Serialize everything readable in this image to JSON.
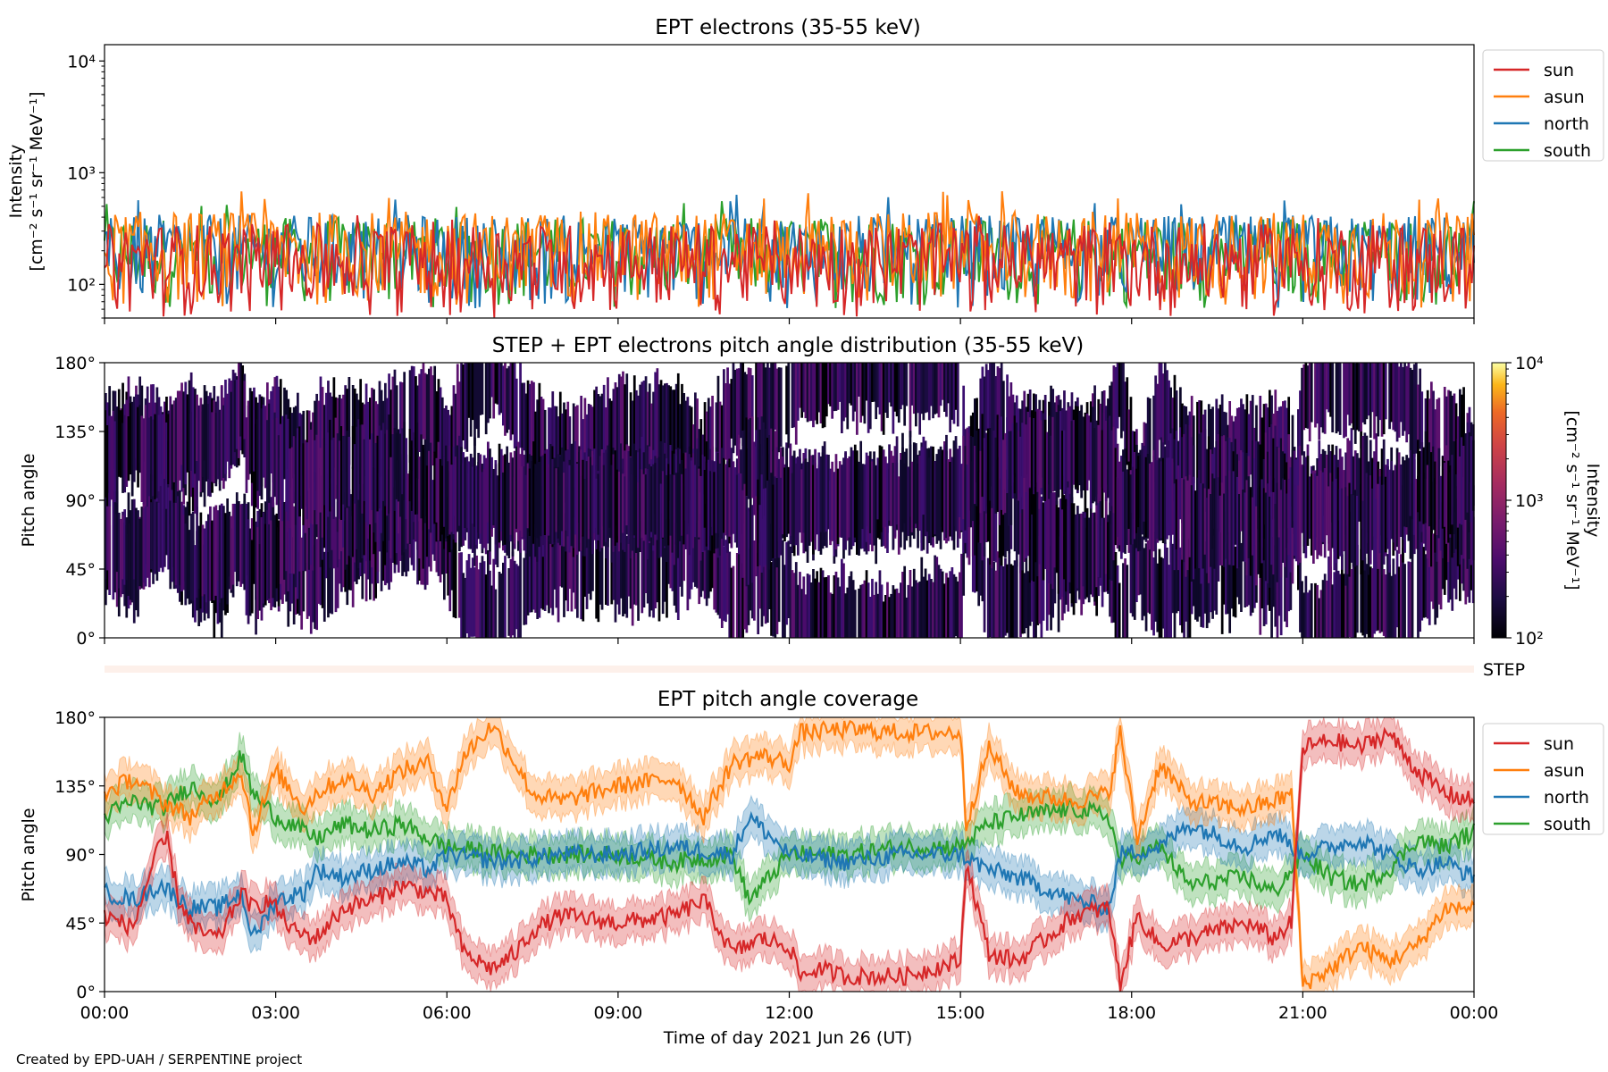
{
  "footer": "Created by EPD-UAH / SERPENTINE project",
  "xlabel": "Time of day 2021 Jun 26 (UT)",
  "chart_data": [
    {
      "type": "line",
      "title": "EPT electrons (35-55 keV)",
      "ylabel_line1": "Intensity",
      "ylabel_line2": "[cm⁻² s⁻¹ sr⁻¹ MeV⁻¹]",
      "yscale": "log",
      "ylim": [
        50,
        14000
      ],
      "yticks": [
        {
          "value": 100,
          "label": "10²"
        },
        {
          "value": 1000,
          "label": "10³"
        },
        {
          "value": 10000,
          "label": "10⁴"
        }
      ],
      "xlim_hours": [
        0,
        24
      ],
      "legend_position": "outside-right",
      "series": [
        {
          "name": "sun",
          "color": "#d62728",
          "typical_range": [
            50,
            350
          ],
          "peak": 420
        },
        {
          "name": "asun",
          "color": "#ff7f0e",
          "typical_range": [
            60,
            450
          ],
          "peak": 700
        },
        {
          "name": "north",
          "color": "#1f77b4",
          "typical_range": [
            60,
            420
          ],
          "peak": 650
        },
        {
          "name": "south",
          "color": "#2ca02c",
          "typical_range": [
            60,
            400
          ],
          "peak": 560
        }
      ]
    },
    {
      "type": "heatmap",
      "title": "STEP + EPT electrons pitch angle distribution (35-55 keV)",
      "ylabel": "Pitch angle",
      "ylim": [
        0,
        180
      ],
      "yticks": [
        "0°",
        "45°",
        "90°",
        "135°",
        "180°"
      ],
      "colorbar": {
        "label_line1": "Intensity",
        "label_line2": "[cm⁻² s⁻¹ sr⁻¹ MeV⁻¹]",
        "scale": "log",
        "range": [
          100,
          10000
        ],
        "ticks": [
          "10²",
          "10³",
          "10⁴"
        ],
        "colormap": "inferno"
      },
      "xlim_hours": [
        0,
        24
      ]
    },
    {
      "type": "bar",
      "label": "STEP",
      "color": "#fdf0ea",
      "xlim_hours": [
        0,
        24
      ]
    },
    {
      "type": "line",
      "title": "EPT pitch angle coverage",
      "ylabel": "Pitch angle",
      "ylim": [
        0,
        180
      ],
      "yticks": [
        "0°",
        "45°",
        "90°",
        "135°",
        "180°"
      ],
      "xticks": [
        "00:00",
        "03:00",
        "06:00",
        "09:00",
        "12:00",
        "15:00",
        "18:00",
        "21:00",
        "00:00"
      ],
      "legend_position": "outside-right",
      "band_halfwidth_deg": 12,
      "series": [
        {
          "name": "sun",
          "color": "#d62728",
          "x": [
            0,
            0.5,
            0.9,
            1.1,
            1.3,
            1.6,
            2.0,
            2.4,
            2.6,
            2.9,
            3.3,
            3.7,
            4.2,
            4.7,
            5.2,
            5.7,
            6.0,
            6.3,
            6.8,
            7.2,
            7.5,
            8.0,
            9.0,
            10.0,
            10.5,
            11.0,
            11.5,
            12.0,
            12.2,
            12.5,
            13.0,
            14.0,
            15.0,
            15.1,
            15.5,
            16.0,
            17.0,
            17.6,
            17.8,
            18.1,
            18.5,
            19.0,
            20.0,
            20.5,
            20.8,
            21.0,
            21.5,
            22.0,
            22.5,
            23.0,
            23.5,
            24.0
          ],
          "y": [
            50,
            42,
            90,
            100,
            60,
            40,
            35,
            65,
            55,
            60,
            40,
            35,
            55,
            60,
            70,
            65,
            60,
            25,
            15,
            25,
            40,
            50,
            45,
            50,
            60,
            25,
            35,
            30,
            10,
            15,
            10,
            10,
            20,
            85,
            25,
            20,
            50,
            55,
            5,
            50,
            30,
            35,
            45,
            35,
            45,
            160,
            165,
            160,
            170,
            145,
            130,
            125
          ]
        },
        {
          "name": "asun",
          "color": "#ff7f0e",
          "x": [
            0,
            0.5,
            1.0,
            1.5,
            2.0,
            2.4,
            2.6,
            3.0,
            3.5,
            3.7,
            4.2,
            4.7,
            5.2,
            5.7,
            6.0,
            6.3,
            6.8,
            7.2,
            7.5,
            8.0,
            9.0,
            10.0,
            10.5,
            11.0,
            11.5,
            12.0,
            12.2,
            13.0,
            14.0,
            15.0,
            15.1,
            15.5,
            16.0,
            17.0,
            17.6,
            17.8,
            18.1,
            18.5,
            19.0,
            20.0,
            20.5,
            20.8,
            21.0,
            21.5,
            22.0,
            22.5,
            23.0,
            23.5,
            24.0
          ],
          "y": [
            130,
            140,
            125,
            115,
            130,
            145,
            105,
            145,
            120,
            130,
            140,
            130,
            145,
            150,
            120,
            155,
            175,
            150,
            130,
            125,
            135,
            140,
            115,
            150,
            155,
            150,
            170,
            172,
            170,
            170,
            110,
            160,
            130,
            125,
            130,
            170,
            100,
            150,
            125,
            120,
            125,
            130,
            5,
            15,
            30,
            20,
            30,
            55,
            55
          ]
        },
        {
          "name": "north",
          "color": "#1f77b4",
          "x": [
            0,
            0.5,
            1.0,
            1.5,
            2.0,
            2.4,
            2.6,
            3.0,
            3.5,
            3.7,
            4.2,
            4.7,
            5.2,
            5.7,
            6.0,
            7.0,
            8.0,
            9.0,
            10.0,
            11.0,
            11.3,
            12.0,
            13.0,
            14.0,
            15.0,
            15.5,
            16.0,
            17.0,
            17.6,
            17.8,
            18.5,
            19.0,
            20.0,
            20.5,
            21.0,
            21.5,
            22.0,
            22.5,
            23.0,
            23.5,
            24.0
          ],
          "y": [
            65,
            60,
            70,
            55,
            55,
            65,
            35,
            60,
            65,
            80,
            75,
            80,
            85,
            80,
            90,
            85,
            90,
            90,
            95,
            90,
            115,
            90,
            85,
            90,
            90,
            80,
            75,
            60,
            55,
            90,
            95,
            110,
            95,
            105,
            90,
            95,
            100,
            90,
            80,
            85,
            75
          ]
        },
        {
          "name": "south",
          "color": "#2ca02c",
          "x": [
            0,
            0.5,
            1.0,
            1.5,
            2.0,
            2.4,
            2.6,
            3.0,
            3.5,
            3.7,
            4.2,
            4.7,
            5.2,
            5.7,
            6.0,
            7.0,
            8.0,
            9.0,
            10.0,
            11.0,
            11.3,
            12.0,
            13.0,
            14.0,
            15.0,
            15.5,
            16.0,
            17.0,
            17.6,
            17.8,
            18.5,
            19.0,
            20.0,
            20.5,
            21.0,
            21.5,
            22.0,
            22.5,
            23.0,
            23.5,
            24.0
          ],
          "y": [
            115,
            125,
            120,
            135,
            125,
            155,
            130,
            115,
            105,
            100,
            110,
            105,
            110,
            100,
            95,
            90,
            90,
            90,
            85,
            90,
            60,
            90,
            90,
            95,
            95,
            110,
            115,
            120,
            115,
            85,
            95,
            70,
            75,
            65,
            90,
            75,
            70,
            80,
            100,
            95,
            105
          ]
        }
      ]
    }
  ]
}
